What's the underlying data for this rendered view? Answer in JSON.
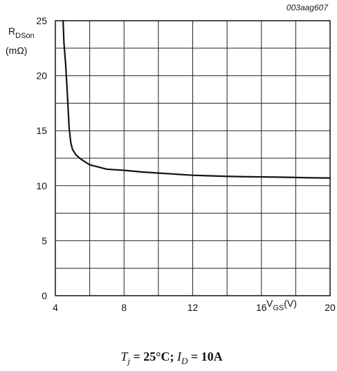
{
  "figure_id": "003aag607",
  "conditions": {
    "tj_symbol": "T",
    "tj_sub": "j",
    "tj_value": "25°C;",
    "id_symbol": "I",
    "id_sub": "D",
    "id_value": "10A"
  },
  "chart_data": {
    "type": "line",
    "title": "",
    "xlabel": {
      "main": "V",
      "sub": "GS",
      "unit": "(V)"
    },
    "ylabel": {
      "main": "R",
      "sub": "DSon",
      "unit": "(mΩ)"
    },
    "xlim": [
      4,
      20
    ],
    "ylim": [
      0,
      25
    ],
    "x_ticks": [
      4,
      8,
      12,
      16,
      20
    ],
    "y_ticks": [
      0,
      5,
      10,
      15,
      20,
      25
    ],
    "grid": true,
    "grid_x_step": 2,
    "grid_y_step": 2.5,
    "series": [
      {
        "x": [
          4.45,
          4.5,
          4.6,
          4.7,
          4.8,
          4.9,
          5.0,
          5.2,
          5.5,
          6.0,
          6.5,
          7.0,
          8.0,
          9.0,
          10.0,
          11.0,
          12.0,
          13.0,
          14.0,
          15.0,
          16.0,
          17.0,
          18.0,
          19.0,
          20.0
        ],
        "y": [
          25,
          23.0,
          21.0,
          18.3,
          15.3,
          13.9,
          13.3,
          12.8,
          12.4,
          11.9,
          11.7,
          11.5,
          11.4,
          11.25,
          11.15,
          11.05,
          10.95,
          10.9,
          10.85,
          10.82,
          10.8,
          10.78,
          10.75,
          10.72,
          10.7
        ]
      }
    ]
  }
}
